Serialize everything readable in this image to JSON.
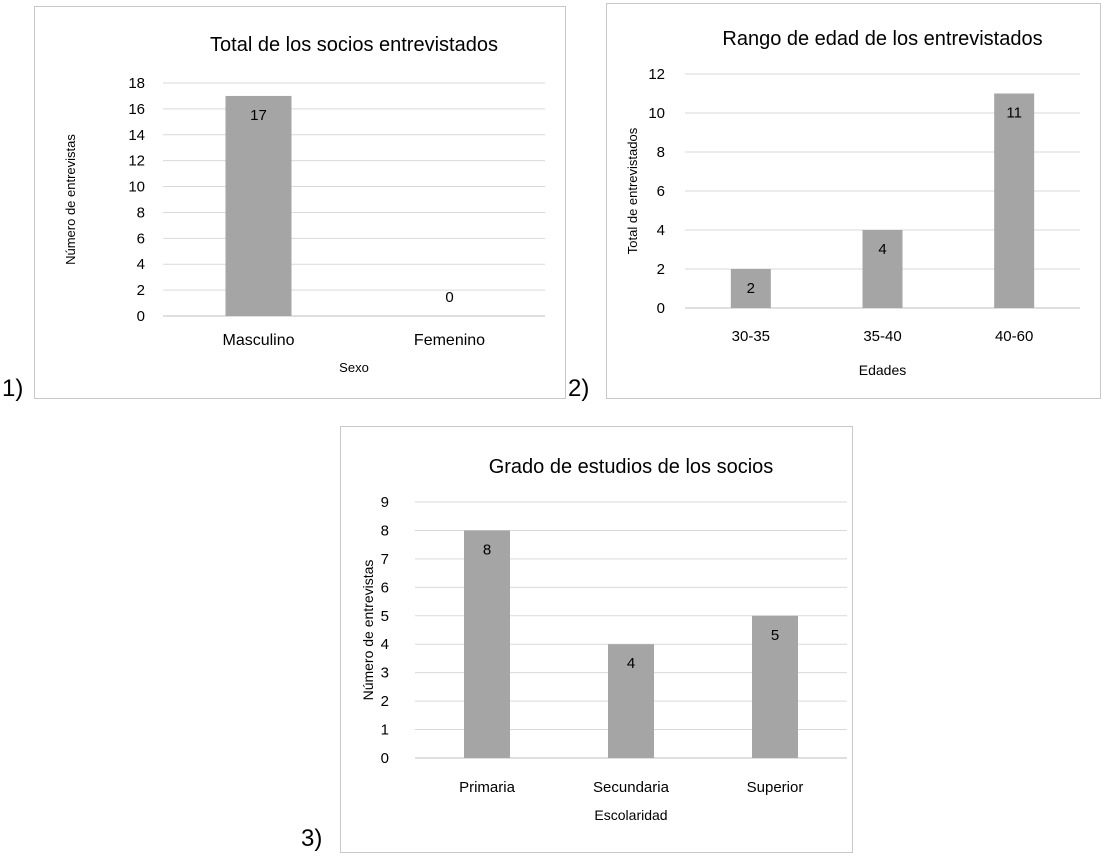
{
  "panel_labels": [
    "1)",
    "2)",
    "3)"
  ],
  "colors": {
    "bar": "#a5a5a5",
    "grid": "#d9d9d9",
    "axis": "#bfbfbf",
    "text": "#000000"
  },
  "chart_data": [
    {
      "type": "bar",
      "title": "Total de los socios entrevistados",
      "xlabel": "Sexo",
      "ylabel": "Número de entrevistas",
      "categories": [
        "Masculino",
        "Femenino"
      ],
      "values": [
        17,
        0
      ],
      "data_labels": [
        "17",
        "0"
      ],
      "ylim": [
        0,
        18
      ],
      "yticks": [
        0,
        2,
        4,
        6,
        8,
        10,
        12,
        14,
        16,
        18
      ],
      "grid": true,
      "legend": "none"
    },
    {
      "type": "bar",
      "title": "Rango de edad de los entrevistados",
      "xlabel": "Edades",
      "ylabel": "Total de entrevistados",
      "categories": [
        "30-35",
        "35-40",
        "40-60"
      ],
      "values": [
        2,
        4,
        11
      ],
      "data_labels": [
        "2",
        "4",
        "11"
      ],
      "ylim": [
        0,
        12
      ],
      "yticks": [
        0,
        2,
        4,
        6,
        8,
        10,
        12
      ],
      "grid": true,
      "legend": "none"
    },
    {
      "type": "bar",
      "title": "Grado de estudios de los socios",
      "xlabel": "Escolaridad",
      "ylabel": "Número de entrevistas",
      "categories": [
        "Primaria",
        "Secundaria",
        "Superior"
      ],
      "values": [
        8,
        4,
        5
      ],
      "data_labels": [
        "8",
        "4",
        "5"
      ],
      "ylim": [
        0,
        9
      ],
      "yticks": [
        0,
        1,
        2,
        3,
        4,
        5,
        6,
        7,
        8,
        9
      ],
      "grid": true,
      "legend": "none"
    }
  ]
}
